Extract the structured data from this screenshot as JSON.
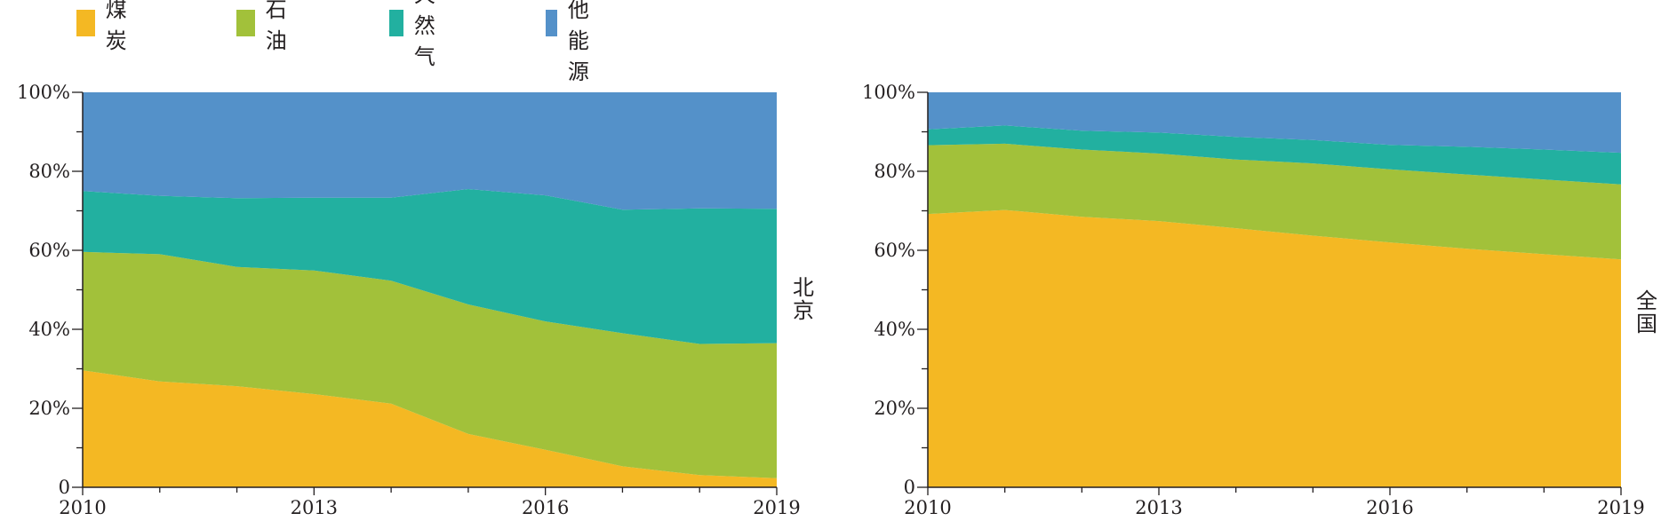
{
  "legend": [
    {
      "label": "煤炭",
      "color": "#F4B823"
    },
    {
      "label": "石油",
      "color": "#A2C13A"
    },
    {
      "label": "天然气",
      "color": "#22B0A0"
    },
    {
      "label": "其他能源",
      "color": "#5491C9"
    }
  ],
  "chart_data": [
    {
      "type": "area",
      "stacked": true,
      "panel_label": "北京",
      "x": [
        2010,
        2011,
        2012,
        2013,
        2014,
        2015,
        2016,
        2017,
        2018,
        2019
      ],
      "xticks": [
        "2010",
        "2013",
        "2016",
        "2019"
      ],
      "yticks": [
        "0",
        "20%",
        "40%",
        "60%",
        "80%",
        "100%"
      ],
      "ylim": [
        0,
        100
      ],
      "legend_position": "top-left",
      "series": [
        {
          "name": "煤炭",
          "values": [
            29.6,
            26.8,
            25.6,
            23.6,
            21.2,
            13.5,
            9.5,
            5.3,
            3.1,
            2.3
          ]
        },
        {
          "name": "石油",
          "values": [
            30.0,
            32.2,
            30.2,
            31.3,
            31.1,
            32.8,
            32.5,
            33.7,
            33.2,
            34.2
          ]
        },
        {
          "name": "天然气",
          "values": [
            15.4,
            14.8,
            17.4,
            18.4,
            21.0,
            29.2,
            31.9,
            31.3,
            34.3,
            34.0
          ]
        },
        {
          "name": "其他能源",
          "values": [
            25.0,
            26.2,
            26.8,
            26.7,
            26.7,
            24.5,
            26.1,
            29.7,
            29.4,
            29.5
          ]
        }
      ]
    },
    {
      "type": "area",
      "stacked": true,
      "panel_label": "全国",
      "x": [
        2010,
        2011,
        2012,
        2013,
        2014,
        2015,
        2016,
        2017,
        2018,
        2019
      ],
      "xticks": [
        "2010",
        "2013",
        "2016",
        "2019"
      ],
      "yticks": [
        "0",
        "20%",
        "40%",
        "60%",
        "80%",
        "100%"
      ],
      "ylim": [
        0,
        100
      ],
      "legend_position": "top-left",
      "series": [
        {
          "name": "煤炭",
          "values": [
            69.2,
            70.2,
            68.5,
            67.4,
            65.6,
            63.7,
            62.0,
            60.4,
            59.0,
            57.7
          ]
        },
        {
          "name": "石油",
          "values": [
            17.4,
            16.8,
            17.0,
            17.1,
            17.4,
            18.3,
            18.5,
            18.8,
            18.9,
            19.0
          ]
        },
        {
          "name": "天然气",
          "values": [
            4.0,
            4.6,
            4.8,
            5.3,
            5.7,
            5.9,
            6.2,
            7.0,
            7.6,
            8.0
          ]
        },
        {
          "name": "其他能源",
          "values": [
            9.4,
            8.4,
            9.7,
            10.2,
            11.3,
            12.1,
            13.3,
            13.8,
            14.5,
            15.3
          ]
        }
      ]
    }
  ]
}
